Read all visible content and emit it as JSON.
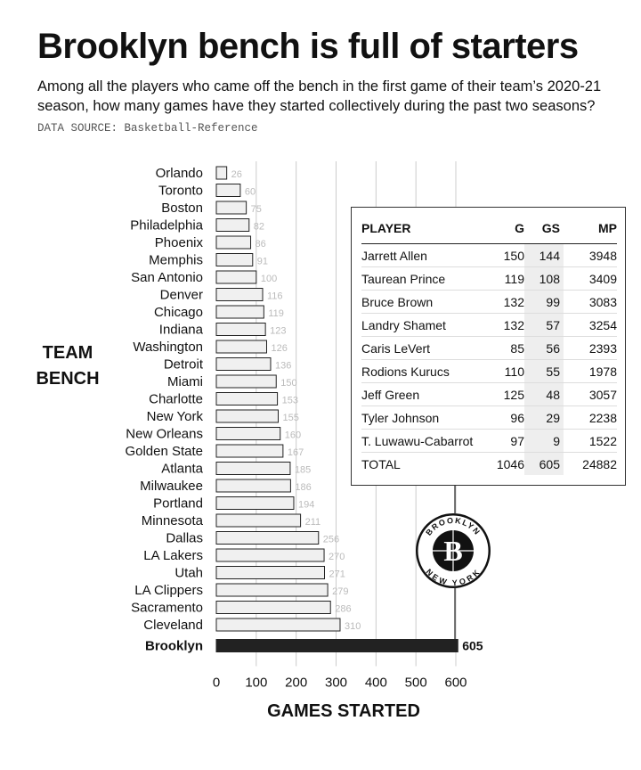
{
  "title": "Brooklyn bench is full of starters",
  "subtitle": "Among all the players who came off the bench in the first game of their team’s 2020-21 season, how many games have they started collectively during the past two seasons?",
  "source": "DATA SOURCE: Basketball-Reference",
  "colors": {
    "bar": "#f0f0f0",
    "bar_highlight": "#222222",
    "value_label": "#bbbbbb",
    "grid": "#cccccc"
  },
  "chart_data": {
    "type": "bar",
    "orientation": "horizontal",
    "ylabel_lines": [
      "TEAM",
      "BENCH"
    ],
    "xlabel": "GAMES STARTED",
    "xlim": [
      0,
      600
    ],
    "xticks": [
      0,
      100,
      200,
      300,
      400,
      500,
      600
    ],
    "grid": true,
    "highlight": "Brooklyn",
    "categories": [
      "Orlando",
      "Toronto",
      "Boston",
      "Philadelphia",
      "Phoenix",
      "Memphis",
      "San Antonio",
      "Denver",
      "Chicago",
      "Indiana",
      "Washington",
      "Detroit",
      "Miami",
      "Charlotte",
      "New York",
      "New Orleans",
      "Golden State",
      "Atlanta",
      "Milwaukee",
      "Portland",
      "Minnesota",
      "Dallas",
      "LA Lakers",
      "Utah",
      "LA Clippers",
      "Sacramento",
      "Cleveland",
      "Brooklyn"
    ],
    "values": [
      26,
      60,
      75,
      82,
      86,
      91,
      100,
      116,
      119,
      123,
      126,
      136,
      150,
      153,
      155,
      160,
      167,
      185,
      186,
      194,
      211,
      256,
      270,
      271,
      279,
      286,
      310,
      605
    ]
  },
  "table": {
    "headers": [
      "PLAYER",
      "G",
      "GS",
      "MP"
    ],
    "rows": [
      [
        "Jarrett Allen",
        "150",
        "144",
        "3948"
      ],
      [
        "Taurean Prince",
        "119",
        "108",
        "3409"
      ],
      [
        "Bruce Brown",
        "132",
        "99",
        "3083"
      ],
      [
        "Landry Shamet",
        "132",
        "57",
        "3254"
      ],
      [
        "Caris LeVert",
        "85",
        "56",
        "2393"
      ],
      [
        "Rodions Kurucs",
        "110",
        "55",
        "1978"
      ],
      [
        "Jeff Green",
        "125",
        "48",
        "3057"
      ],
      [
        "Tyler Johnson",
        "96",
        "29",
        "2238"
      ],
      [
        "T. Luwawu-Cabarrot",
        "97",
        "9",
        "1522"
      ],
      [
        "TOTAL",
        "1046",
        "605",
        "24882"
      ]
    ]
  },
  "logo": {
    "icon": "brooklyn-nets-logo",
    "top_text": "BROOKLYN",
    "bottom_text": "NEW YORK",
    "letter": "B"
  }
}
